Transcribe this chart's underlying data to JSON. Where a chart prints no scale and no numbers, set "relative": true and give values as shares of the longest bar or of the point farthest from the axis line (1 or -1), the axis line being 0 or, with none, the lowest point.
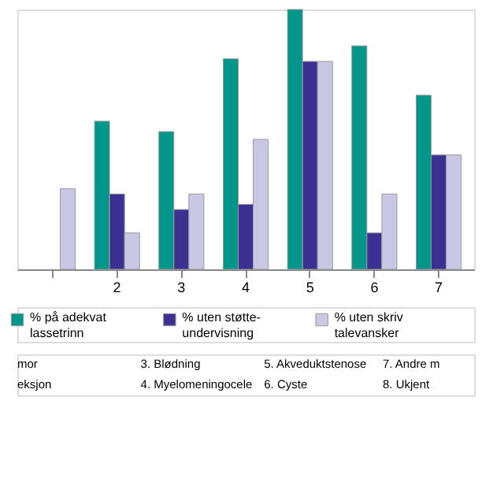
{
  "chart_data": {
    "type": "bar",
    "relative": true,
    "categories": [
      null,
      "2",
      "3",
      "4",
      "5",
      "6",
      "7"
    ],
    "series": [
      {
        "name": "% på adekvat lassetrinn",
        "color": "#00968a",
        "values": [
          null,
          0.57,
          0.53,
          0.81,
          1,
          0.86,
          0.67
        ]
      },
      {
        "name": "% uten støtte-undervisning",
        "color": "#3a3192",
        "values": [
          null,
          0.29,
          0.23,
          0.25,
          0.8,
          0.14,
          0.44
        ]
      },
      {
        "name": "% uten skriv talevansker",
        "color": "#c9c8e4",
        "values": [
          0.31,
          0.14,
          0.29,
          0.5,
          0.8,
          0.29,
          0.44
        ]
      }
    ],
    "legend": "bottom",
    "grid": false,
    "annotations": [
      "mor",
      "3. Blødning",
      "5. Akveduktstenose",
      "7. Andre m",
      "eksjon",
      "4. Myelomeningocele",
      "6. Cyste",
      "8. Ukjent"
    ]
  }
}
